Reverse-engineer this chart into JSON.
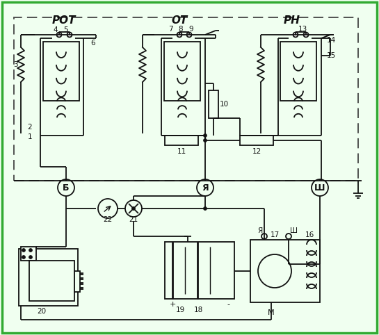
{
  "bg": "#f0fff0",
  "border_color": "#33aa33",
  "lc": "#111111",
  "title_ROT": "РОТ",
  "title_OT": "ОТ",
  "title_RN": "РН",
  "label_B": "Б",
  "label_Ya": "Я",
  "label_Sh": "Ш",
  "label_M": "М",
  "label_Ya2": "Я",
  "label_Sh2": "Ш",
  "nums": [
    "1",
    "2",
    "3",
    "4",
    "5",
    "6",
    "7",
    "8",
    "9",
    "10",
    "11",
    "12",
    "13",
    "14",
    "15",
    "16",
    "17",
    "18",
    "19",
    "20",
    "21",
    "22"
  ]
}
